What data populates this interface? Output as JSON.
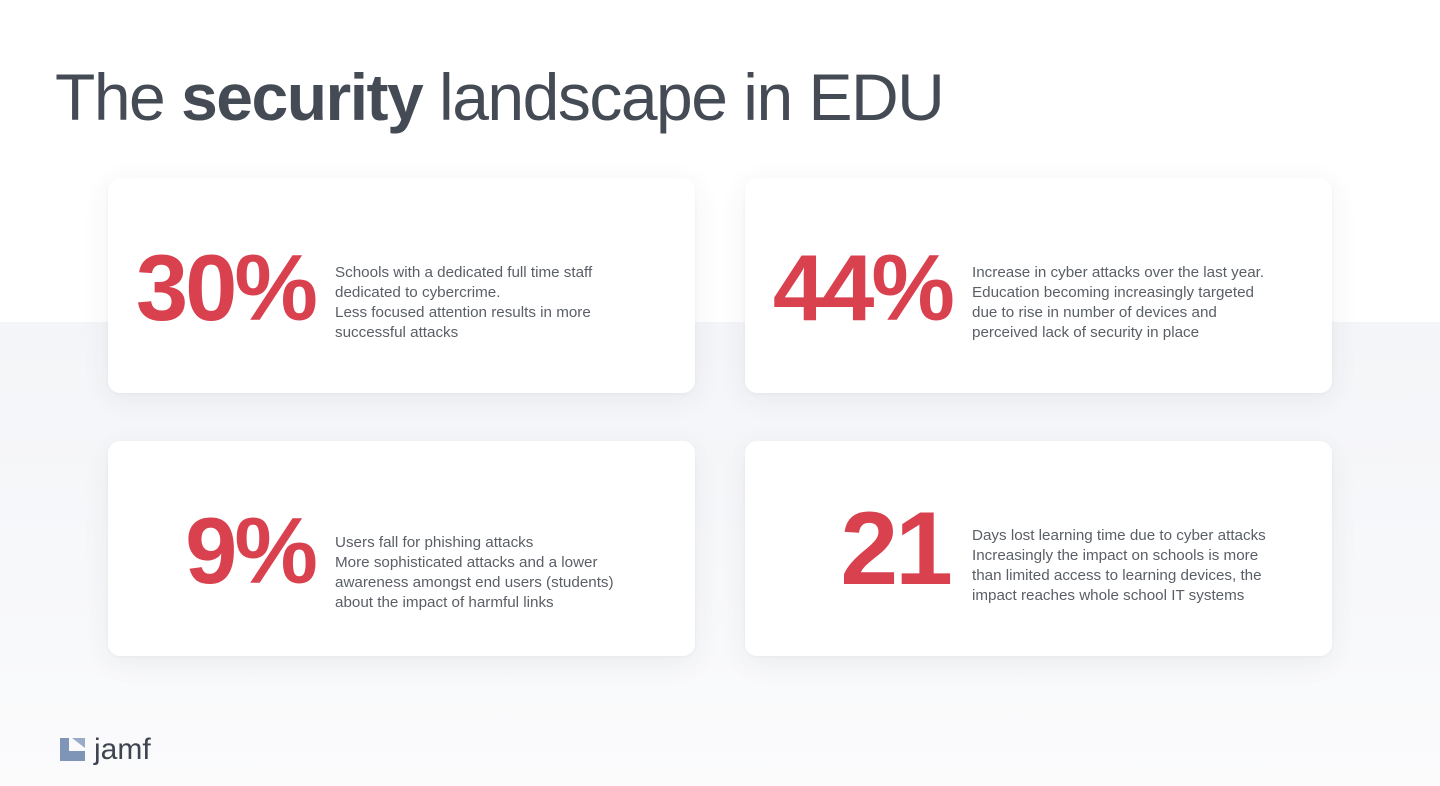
{
  "title": {
    "prefix": "The ",
    "emphasis": "security",
    "suffix": " landscape in EDU"
  },
  "colors": {
    "accent": "#d9414f",
    "title": "#454b55",
    "body_text": "#5a5f66",
    "logo_mark": "#7f95b8"
  },
  "stats": [
    {
      "value": "30%",
      "lines": [
        "Schools with a dedicated full time staff",
        "dedicated to cybercrime.",
        "Less focused attention results in more",
        "successful attacks"
      ]
    },
    {
      "value": "44%",
      "lines": [
        "Increase in cyber attacks over the last year.",
        "Education becoming increasingly targeted",
        "due to rise in number of devices and",
        "perceived lack of security in place"
      ]
    },
    {
      "value": "9%",
      "lines": [
        "Users fall for phishing attacks",
        "More sophisticated attacks and a lower",
        "awareness amongst end users (students)",
        "about the impact of harmful links"
      ]
    },
    {
      "value": "21",
      "lines": [
        "Days lost learning time due to cyber attacks",
        "Increasingly the impact on schools is more",
        "than limited access to learning devices, the",
        "impact reaches whole school IT systems"
      ]
    }
  ],
  "logo": {
    "wordmark": "jamf",
    "icon": "jamf-logo-icon"
  }
}
